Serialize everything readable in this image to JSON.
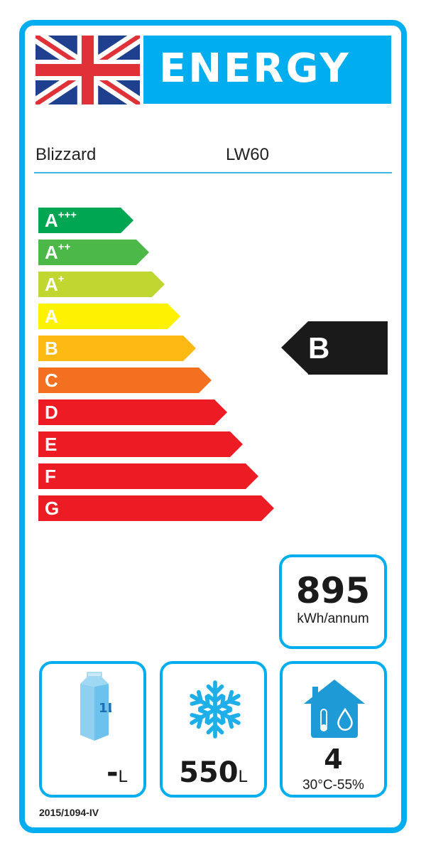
{
  "header": {
    "title": "ENERGY",
    "flag": "uk-flag"
  },
  "supplier": "Blizzard",
  "model": "LW60",
  "scale": [
    {
      "label": "A",
      "sup": "+++",
      "color": "#00a651"
    },
    {
      "label": "A",
      "sup": "++",
      "color": "#4cb848"
    },
    {
      "label": "A",
      "sup": "+",
      "color": "#bfd730"
    },
    {
      "label": "A",
      "sup": "",
      "color": "#fff200"
    },
    {
      "label": "B",
      "sup": "",
      "color": "#fdb913"
    },
    {
      "label": "C",
      "sup": "",
      "color": "#f37021"
    },
    {
      "label": "D",
      "sup": "",
      "color": "#ed1c24"
    },
    {
      "label": "E",
      "sup": "",
      "color": "#ed1c24"
    },
    {
      "label": "F",
      "sup": "",
      "color": "#ed1c24"
    },
    {
      "label": "G",
      "sup": "",
      "color": "#ed1c24"
    }
  ],
  "rating": "B",
  "consumption": {
    "value": "895",
    "unit": "kWh/annum"
  },
  "chilled": {
    "icon": "milk-carton-icon",
    "icon_label": "1L",
    "value": "-",
    "unit": "L"
  },
  "frozen": {
    "icon": "snowflake-icon",
    "value": "550",
    "unit": "L"
  },
  "climate": {
    "icon": "house-thermometer-drop-icon",
    "value": "4",
    "conditions": "30°C-55%"
  },
  "regulation": "2015/1094-IV",
  "colors": {
    "border": "#00aeef",
    "indicator": "#1a1a1a"
  }
}
